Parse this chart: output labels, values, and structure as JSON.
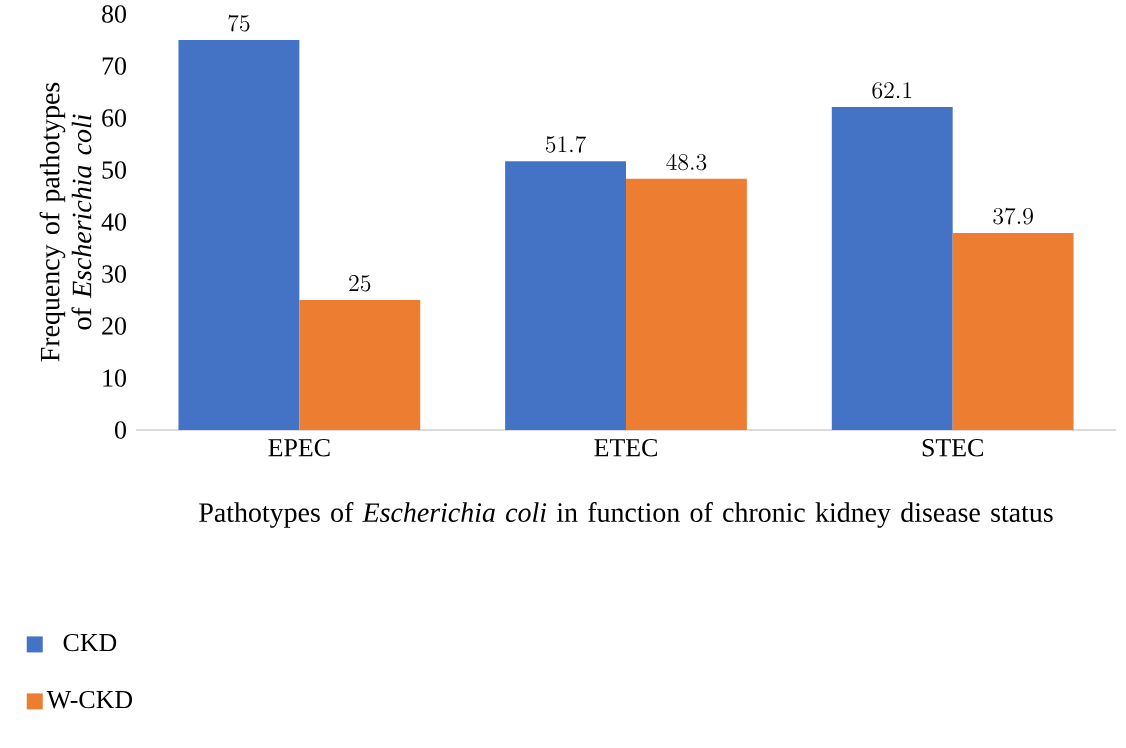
{
  "chart_data": {
    "type": "bar",
    "ylabel": "Frequency of pathotypes of *Escherichia coli*",
    "xlabel": "Pathotypes of *Escherichia coli* in function of chronic kidney disease status",
    "categories": [
      "EPEC",
      "ETEC",
      "STEC"
    ],
    "series": [
      {
        "name": "CKD",
        "color": "#4472c4",
        "values": [
          75,
          51.7,
          62.1
        ]
      },
      {
        "name": "W-CKD",
        "color": "#ed7d31",
        "values": [
          25,
          48.3,
          37.9
        ]
      }
    ],
    "ylim": [
      0,
      80
    ],
    "yticks": [
      0,
      10,
      20,
      30,
      40,
      50,
      60,
      70,
      80
    ],
    "data_labels": true,
    "legend": "bottom"
  }
}
